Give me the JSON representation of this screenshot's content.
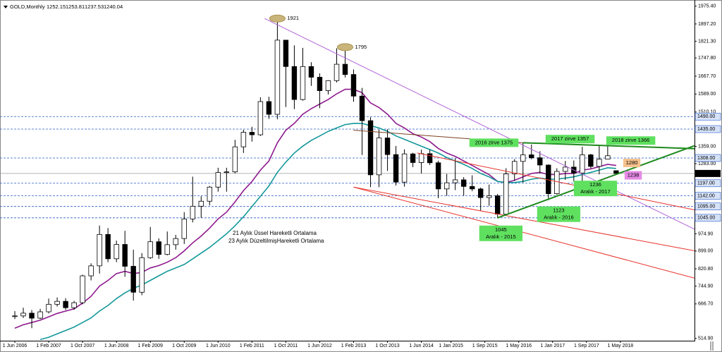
{
  "chart_data": {
    "type": "candlestick",
    "title": "GOLD,Monthly",
    "up_color": "#ffffff",
    "down_color": "#000000",
    "x": [
      0,
      2,
      4,
      6,
      8,
      10,
      12,
      14,
      16,
      18,
      20,
      22,
      24,
      26,
      28,
      30,
      32,
      34,
      36,
      38,
      40,
      42,
      44,
      46,
      48,
      50,
      52,
      54,
      56,
      58,
      60,
      62,
      64,
      66,
      68,
      70,
      72,
      74,
      76,
      78,
      80,
      82,
      84,
      86,
      88,
      90,
      92,
      94,
      96,
      98,
      100,
      102,
      104,
      106,
      108,
      110,
      112,
      114,
      116,
      118,
      120,
      122,
      124,
      126,
      128,
      130,
      132,
      134,
      136,
      138,
      140,
      142
    ],
    "open": [
      612,
      614,
      626,
      604,
      632,
      665,
      678,
      650,
      672,
      790,
      834,
      972,
      865,
      928,
      832,
      718,
      870,
      940,
      884,
      927,
      954,
      1040,
      1096,
      1118,
      1180,
      1244,
      1247,
      1357,
      1421,
      1410,
      1556,
      1500,
      1826,
      1710,
      1565,
      1710,
      1663,
      1604,
      1648,
      1720,
      1675,
      1580,
      1472,
      1234,
      1396,
      1323,
      1202,
      1326,
      1288,
      1327,
      1287,
      1172,
      1199,
      1212,
      1183,
      1172,
      1134,
      1142,
      1061,
      1238,
      1293,
      1322,
      1309,
      1277,
      1151,
      1249,
      1268,
      1242,
      1322,
      1271,
      1303,
      1252.15
    ],
    "high": [
      635,
      650,
      640,
      645,
      690,
      695,
      692,
      680,
      795,
      845,
      1011,
      1000,
      945,
      988,
      905,
      890,
      1005,
      955,
      985,
      970,
      1070,
      1226,
      1140,
      1185,
      1265,
      1265,
      1388,
      1432,
      1445,
      1575,
      1577,
      1921,
      1813,
      1803,
      1792,
      1729,
      1680,
      1650,
      1790,
      1795,
      1697,
      1616,
      1487,
      1433,
      1434,
      1361,
      1346,
      1331,
      1345,
      1345,
      1296,
      1238,
      1307,
      1224,
      1232,
      1178,
      1191,
      1150,
      1263,
      1303,
      1375,
      1367,
      1338,
      1280,
      1263,
      1295,
      1297,
      1357,
      1326,
      1366,
      1365,
      1253.81
    ],
    "low": [
      600,
      605,
      560,
      600,
      625,
      655,
      640,
      641,
      665,
      770,
      800,
      850,
      850,
      786,
      681,
      705,
      865,
      865,
      880,
      905,
      930,
      1025,
      1045,
      1100,
      1160,
      1160,
      1240,
      1330,
      1380,
      1405,
      1480,
      1478,
      1532,
      1523,
      1560,
      1625,
      1527,
      1587,
      1640,
      1662,
      1555,
      1321,
      1180,
      1180,
      1251,
      1187,
      1182,
      1268,
      1240,
      1277,
      1131,
      1142,
      1167,
      1142,
      1162,
      1077,
      1098,
      1045,
      1058,
      1208,
      1200,
      1302,
      1241,
      1123,
      1146,
      1212,
      1204,
      1204,
      1262,
      1236,
      1302,
      1237.53
    ],
    "close": [
      614,
      626,
      604,
      632,
      665,
      678,
      650,
      672,
      790,
      834,
      972,
      865,
      928,
      832,
      718,
      870,
      940,
      884,
      927,
      954,
      1040,
      1096,
      1118,
      1180,
      1244,
      1247,
      1357,
      1421,
      1410,
      1556,
      1500,
      1826,
      1710,
      1565,
      1710,
      1663,
      1604,
      1648,
      1720,
      1675,
      1580,
      1472,
      1234,
      1396,
      1323,
      1202,
      1326,
      1288,
      1327,
      1287,
      1172,
      1199,
      1212,
      1183,
      1172,
      1134,
      1142,
      1061,
      1238,
      1293,
      1322,
      1309,
      1277,
      1151,
      1249,
      1268,
      1242,
      1322,
      1271,
      1303,
      1318,
      1240.04
    ],
    "series": [
      {
        "name": "21 Aylık Üssel Hareketli Ortalama",
        "color": "#8e1a8e",
        "values": [
          560,
          575,
          585,
          595,
          610,
          625,
          635,
          645,
          670,
          700,
          745,
          770,
          800,
          810,
          800,
          805,
          825,
          835,
          850,
          870,
          900,
          935,
          965,
          1000,
          1040,
          1070,
          1115,
          1165,
          1205,
          1255,
          1295,
          1375,
          1430,
          1460,
          1500,
          1525,
          1545,
          1565,
          1590,
          1610,
          1610,
          1595,
          1550,
          1530,
          1500,
          1460,
          1440,
          1415,
          1400,
          1380,
          1350,
          1330,
          1315,
          1295,
          1275,
          1255,
          1235,
          1205,
          1200,
          1210,
          1225,
          1240,
          1245,
          1235,
          1235,
          1240,
          1240,
          1255,
          1260,
          1270,
          1280,
          1275
        ]
      },
      {
        "name": "23 Aylık DüzeltilmişHareketli Ortalama",
        "color": "#14989a",
        "values": [
          null,
          null,
          null,
          510,
          520,
          535,
          550,
          565,
          585,
          605,
          635,
          660,
          690,
          715,
          735,
          750,
          770,
          790,
          810,
          825,
          840,
          865,
          890,
          915,
          945,
          975,
          1010,
          1050,
          1095,
          1140,
          1185,
          1245,
          1290,
          1330,
          1360,
          1385,
          1405,
          1425,
          1440,
          1455,
          1460,
          1460,
          1450,
          1440,
          1425,
          1405,
          1390,
          1375,
          1360,
          1345,
          1330,
          1310,
          1295,
          1280,
          1262,
          1240,
          1225,
          1205,
          1200,
          1200,
          1205,
          1215,
          1220,
          1215,
          1215,
          1220,
          1225,
          1235,
          1245,
          1255,
          1265,
          1262
        ]
      }
    ],
    "xlim": [
      -3.5,
      160.5
    ],
    "ylim": [
      508,
      1990
    ],
    "xticks": [
      {
        "value": 0,
        "label": "1 Jun 2006"
      },
      {
        "value": 8,
        "label": "1 Feb 2007"
      },
      {
        "value": 16,
        "label": "1 Oct 2007"
      },
      {
        "value": 24,
        "label": "1 Jun 2008"
      },
      {
        "value": 32,
        "label": "1 Feb 2009"
      },
      {
        "value": 40,
        "label": "1 Oct 2009"
      },
      {
        "value": 48,
        "label": "1 Jun 2010"
      },
      {
        "value": 56,
        "label": "1 Feb 2011"
      },
      {
        "value": 64,
        "label": "1 Oct 2011"
      },
      {
        "value": 72,
        "label": "1 Jun 2012"
      },
      {
        "value": 80,
        "label": "1 Feb 2013"
      },
      {
        "value": 88,
        "label": "1 Oct 2013"
      },
      {
        "value": 96,
        "label": "1 Jun 2014"
      },
      {
        "value": 103,
        "label": "1 Jan 2015"
      },
      {
        "value": 111,
        "label": "1 Sep 2015"
      },
      {
        "value": 119,
        "label": "1 May 2016"
      },
      {
        "value": 127,
        "label": "1 Jan 2017"
      },
      {
        "value": 135,
        "label": "1 Sep 2017"
      },
      {
        "value": 143,
        "label": "1 May 2018"
      }
    ],
    "yticks": [
      {
        "value": 1975.4,
        "label": "1975.40"
      },
      {
        "value": 1897.2,
        "label": "1897.20"
      },
      {
        "value": 1821.3,
        "label": "1821.30"
      },
      {
        "value": 1747.8,
        "label": "1747.80"
      },
      {
        "value": 1667.7,
        "label": "1667.70"
      },
      {
        "value": 1589,
        "label": "1589.00"
      },
      {
        "value": 1510.1,
        "label": "1510.10"
      },
      {
        "value": 1359,
        "label": "1359.00"
      },
      {
        "value": 1283,
        "label": "1283.00"
      },
      {
        "value": 974.9,
        "label": "974.90"
      },
      {
        "value": 899,
        "label": "899.00"
      },
      {
        "value": 820.8,
        "label": "820.80"
      },
      {
        "value": 744.9,
        "label": "744.90"
      },
      {
        "value": 666.7,
        "label": "666.70"
      },
      {
        "value": 514.9,
        "label": "514.90"
      }
    ],
    "levels": [
      {
        "value": 1490,
        "label": "1490.00"
      },
      {
        "value": 1435,
        "label": "1435.00"
      },
      {
        "value": 1308,
        "label": "1308.00"
      },
      {
        "value": 1197,
        "label": "1197.00"
      },
      {
        "value": 1142,
        "label": "1142.00"
      },
      {
        "value": 1095,
        "label": "1095.00"
      },
      {
        "value": 1045,
        "label": "1045.00"
      }
    ],
    "level_color": "#2a5dc8",
    "trendlines": [
      {
        "x": [
          59,
          160.5
        ],
        "y": [
          1921,
          995
        ],
        "color": "#b266d9"
      },
      {
        "x": [
          80,
          160.5
        ],
        "y": [
          1180,
          900
        ],
        "color": "#e8322a"
      },
      {
        "x": [
          80,
          160.5
        ],
        "y": [
          1180,
          780
        ],
        "color": "#e8322a"
      },
      {
        "x": [
          95,
          160.5
        ],
        "y": [
          1330,
          1080
        ],
        "color": "#e8322a"
      },
      {
        "x": [
          80,
          120
        ],
        "y": [
          1430,
          1375
        ],
        "color": "#7b3f1f"
      },
      {
        "x": [
          120,
          160.5
        ],
        "y": [
          1375,
          1349
        ],
        "color": "#1e8a1e"
      },
      {
        "x": [
          114,
          160.5
        ],
        "y": [
          1045,
          1362
        ],
        "color": "#1e8a1e"
      }
    ],
    "annotations": [
      {
        "text": "1921",
        "x": 62,
        "y": 1921,
        "color": "#c9b57a"
      },
      {
        "text": "1795",
        "x": 78,
        "y": 1795,
        "color": "#c9b57a"
      },
      {
        "text": "2016 zirve 1375",
        "x": 120,
        "y": 1375,
        "color": "#5fe05f"
      },
      {
        "text": "2017 zirve 1357",
        "x": 134,
        "y": 1357,
        "color": "#5fe05f"
      },
      {
        "text": "2018 zirve 1366",
        "x": 138,
        "y": 1366,
        "color": "#5fe05f"
      },
      {
        "lines": [
          "1236",
          "Aralık - 2017"
        ],
        "x": 138,
        "y": 1236,
        "color": "#5fe05f"
      },
      {
        "lines": [
          "1123",
          "Aralık - 2016"
        ],
        "x": 126,
        "y": 1123,
        "color": "#5fe05f"
      },
      {
        "lines": [
          "1045",
          "Aralık - 2015"
        ],
        "x": 114,
        "y": 1045,
        "color": "#5fe05f"
      },
      {
        "text": "1280",
        "x": 142,
        "y": 1280,
        "color": "#f5c18c"
      },
      {
        "text": "1238",
        "x": 142,
        "y": 1238,
        "color": "#e58ae5"
      }
    ]
  }
}
